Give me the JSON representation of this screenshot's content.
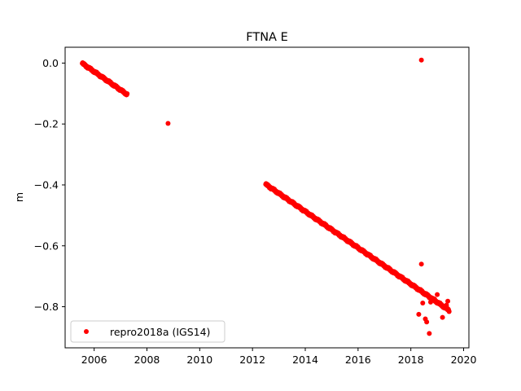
{
  "chart_data": {
    "type": "scatter",
    "title": "FTNA E",
    "xlabel": "",
    "ylabel": "m",
    "xlim": [
      2004.9,
      2020.2
    ],
    "ylim": [
      -0.935,
      0.052
    ],
    "x_ticks": [
      2006,
      2008,
      2010,
      2012,
      2014,
      2016,
      2018,
      2020
    ],
    "x_tick_labels": [
      "2006",
      "2008",
      "2010",
      "2012",
      "2014",
      "2016",
      "2018",
      "2020"
    ],
    "y_ticks": [
      0.0,
      -0.2,
      -0.4,
      -0.6,
      -0.8
    ],
    "y_tick_labels": [
      "0.0",
      "−0.2",
      "−0.4",
      "−0.6",
      "−0.8"
    ],
    "grid": false,
    "legend": {
      "position": "lower-left",
      "entries": [
        "repro2018a (IGS14)"
      ]
    },
    "series": [
      {
        "name": "repro2018a (IGS14)",
        "color": "#ff0000",
        "marker": "circle",
        "segments": [
          {
            "x_start": 2005.55,
            "x_end": 2007.25,
            "y_start": -0.001,
            "y_end": -0.103
          },
          {
            "x_start": 2012.5,
            "x_end": 2019.45,
            "y_start": -0.398,
            "y_end": -0.812
          }
        ],
        "points": [
          [
            2008.8,
            -0.198
          ],
          [
            2018.4,
            0.01
          ],
          [
            2018.4,
            -0.66
          ],
          [
            2018.3,
            -0.825
          ],
          [
            2018.45,
            -0.788
          ],
          [
            2018.55,
            -0.84
          ],
          [
            2018.6,
            -0.85
          ],
          [
            2018.7,
            -0.888
          ],
          [
            2018.75,
            -0.785
          ],
          [
            2018.9,
            -0.775
          ],
          [
            2019.0,
            -0.76
          ],
          [
            2019.2,
            -0.835
          ],
          [
            2019.4,
            -0.782
          ],
          [
            2019.35,
            -0.795
          ]
        ]
      }
    ]
  }
}
